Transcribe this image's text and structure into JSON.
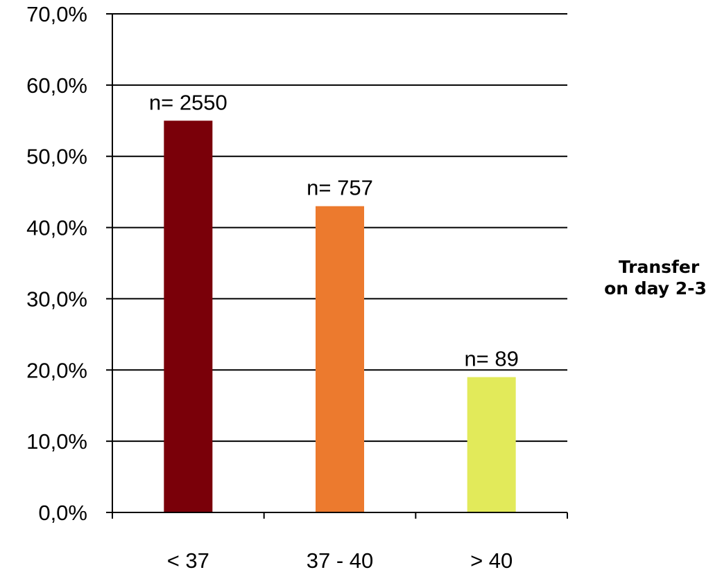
{
  "chart_data": {
    "type": "bar",
    "title": "",
    "xlabel": "",
    "ylabel": "",
    "categories": [
      "< 37",
      "37 - 40",
      "> 40"
    ],
    "values": [
      55.0,
      43.0,
      19.0
    ],
    "data_labels": [
      "n= 2550",
      "n= 757",
      "n= 89"
    ],
    "colors": [
      "#7a0009",
      "#ec7a2e",
      "#e2ea5a"
    ],
    "ylim": [
      0,
      70
    ],
    "yticks": [
      0,
      10,
      20,
      30,
      40,
      50,
      60,
      70
    ],
    "ytick_labels": [
      "0,0%",
      "10,0%",
      "20,0%",
      "30,0%",
      "40,0%",
      "50,0%",
      "60,0%",
      "70,0%"
    ],
    "grid": true,
    "legend": "none",
    "side_annotation": {
      "line1": "Transfer",
      "line2": "on day 2-3"
    }
  }
}
